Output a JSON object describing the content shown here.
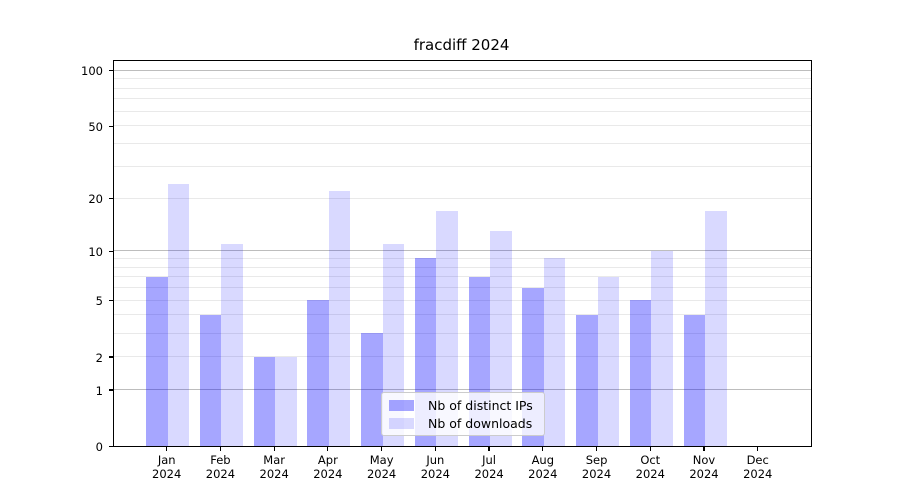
{
  "title": "fracdiff 2024",
  "chart_data": {
    "type": "bar",
    "title": "fracdiff 2024",
    "categories": [
      "Jan",
      "Feb",
      "Mar",
      "Apr",
      "May",
      "Jun",
      "Jul",
      "Aug",
      "Sep",
      "Oct",
      "Nov",
      "Dec"
    ],
    "category_year": "2024",
    "series": [
      {
        "name": "Nb of distinct IPs",
        "color": "rgba(0,0,255,0.35)",
        "values": [
          7,
          4,
          2,
          5,
          3,
          9,
          7,
          6,
          4,
          5,
          4,
          0
        ]
      },
      {
        "name": "Nb of downloads",
        "color": "rgba(0,0,255,0.15)",
        "values": [
          24,
          11,
          2,
          22,
          11,
          17,
          13,
          9,
          7,
          10,
          17,
          0
        ]
      }
    ],
    "y_scale": "log1p",
    "y_max": 112,
    "y_ticks": [
      0,
      1,
      2,
      5,
      10,
      20,
      50,
      100
    ],
    "y_tick_labels": [
      "0",
      "1",
      "2",
      "5",
      "10",
      "20",
      "50",
      "100"
    ],
    "y_major_gridlines": [
      1,
      10,
      100
    ],
    "y_minor_gridlines": [
      2,
      3,
      4,
      5,
      6,
      7,
      8,
      9,
      20,
      30,
      40,
      50,
      60,
      70,
      80,
      90
    ],
    "grid": true,
    "legend_position": "lower center",
    "xlabel": "",
    "ylabel": ""
  },
  "colors": {
    "background": "#ffffff",
    "axis": "#000000",
    "major_grid": "#bdbdbd",
    "minor_grid": "#e9e9e9",
    "bar_distinct_ips": "rgba(0,0,255,0.35)",
    "bar_downloads": "rgba(0,0,255,0.15)",
    "legend_border": "#cccccc"
  }
}
